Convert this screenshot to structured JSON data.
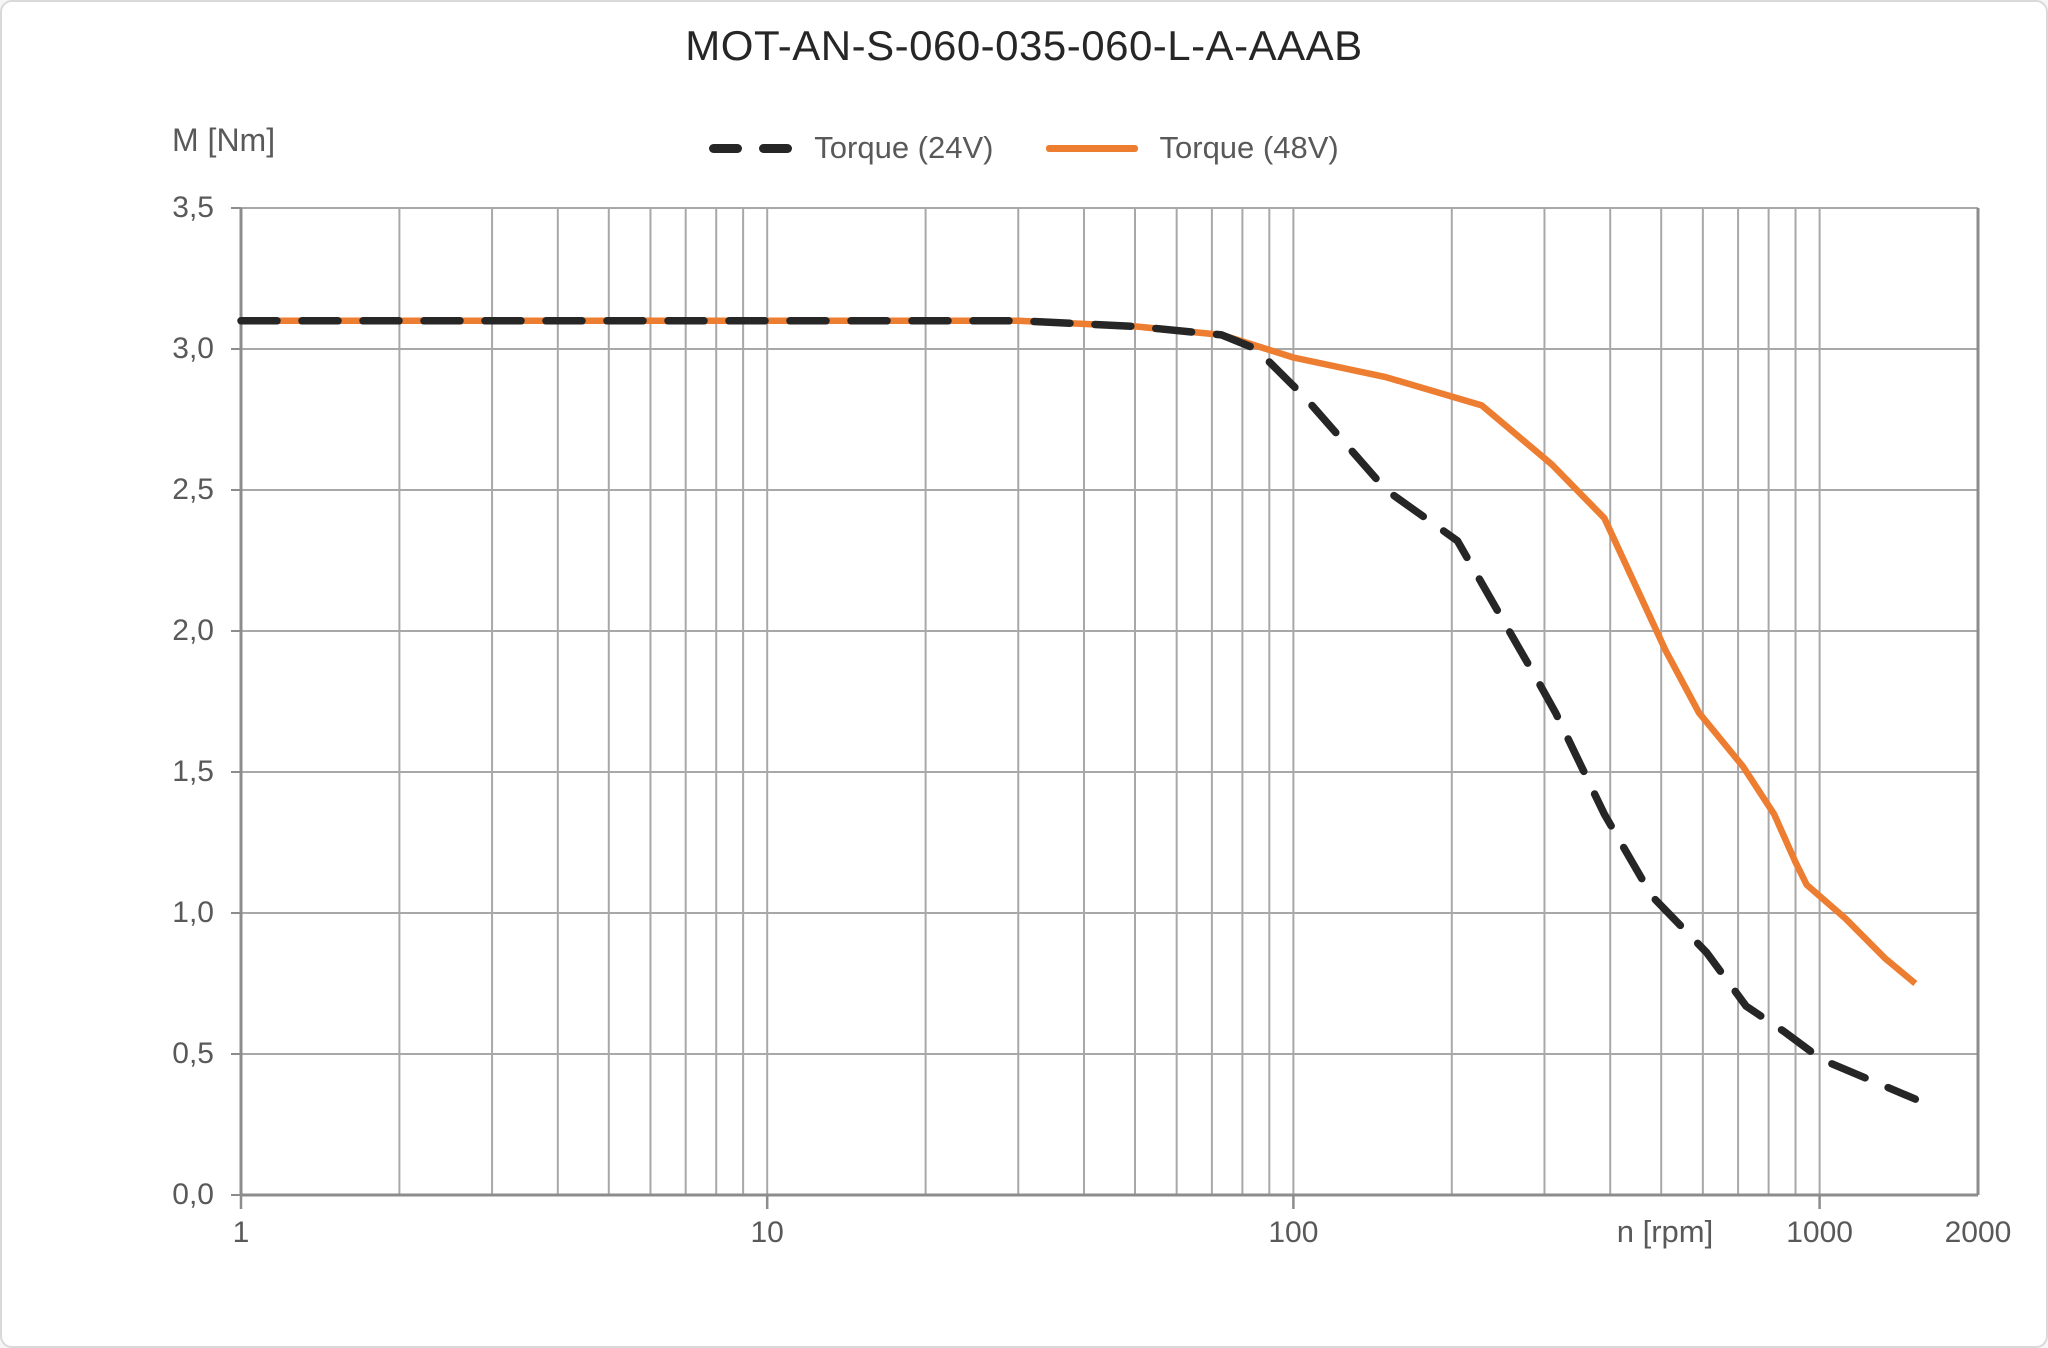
{
  "title": "MOT-AN-S-060-035-060-L-A-AAAB",
  "legend": {
    "items": [
      {
        "label": "Torque (24V)",
        "color": "#262626",
        "line_style": "dashed"
      },
      {
        "label": "Torque (48V)",
        "color": "#ED7D31",
        "line_style": "solid"
      }
    ]
  },
  "y_axis": {
    "title": "M [Nm]",
    "min": 0,
    "max": 3.5,
    "ticks": [
      {
        "value": 3.5,
        "label": "3,5"
      },
      {
        "value": 3.0,
        "label": "3,0"
      },
      {
        "value": 2.5,
        "label": "2,5"
      },
      {
        "value": 2.0,
        "label": "2,0"
      },
      {
        "value": 1.5,
        "label": "1,5"
      },
      {
        "value": 1.0,
        "label": "1,0"
      },
      {
        "value": 0.5,
        "label": "0,5"
      },
      {
        "value": 0.0,
        "label": "0,0"
      }
    ]
  },
  "x_axis": {
    "title": "n [rpm]",
    "scale": "log",
    "min": 1,
    "max": 2000,
    "ticks": [
      {
        "value": 1,
        "label": "1"
      },
      {
        "value": 10,
        "label": "10"
      },
      {
        "value": 100,
        "label": "100"
      },
      {
        "value": 1000,
        "label": "1000"
      },
      {
        "value": 2000,
        "label": "2000"
      }
    ]
  },
  "colors": {
    "background": "#FFFFFF",
    "grid": "#A8A8A8",
    "axis": "#8C8C8C",
    "labels": "#595959",
    "title": "#262626",
    "torque_24v": "#262626",
    "torque_48v": "#ED7D31"
  },
  "chart_data": {
    "type": "line",
    "title": "MOT-AN-S-060-035-060-L-A-AAAB",
    "xlabel": "n [rpm]",
    "ylabel": "M [Nm]",
    "x_scale": "log",
    "xlim": [
      1,
      2000
    ],
    "ylim": [
      0,
      3.5
    ],
    "grid": true,
    "legend_position": "top-center",
    "series": [
      {
        "name": "Torque (24V)",
        "style": "dashed",
        "color": "#262626",
        "points": [
          [
            1,
            3.1
          ],
          [
            10,
            3.1
          ],
          [
            30,
            3.1
          ],
          [
            50,
            3.08
          ],
          [
            73,
            3.05
          ],
          [
            85,
            3.0
          ],
          [
            105,
            2.83
          ],
          [
            150,
            2.5
          ],
          [
            205,
            2.32
          ],
          [
            290,
            1.83
          ],
          [
            315,
            1.71
          ],
          [
            390,
            1.35
          ],
          [
            480,
            1.06
          ],
          [
            610,
            0.86
          ],
          [
            725,
            0.67
          ],
          [
            855,
            0.58
          ],
          [
            1010,
            0.48
          ],
          [
            1240,
            0.41
          ],
          [
            1520,
            0.34
          ]
        ]
      },
      {
        "name": "Torque (48V)",
        "style": "solid",
        "color": "#ED7D31",
        "points": [
          [
            1,
            3.1
          ],
          [
            10,
            3.1
          ],
          [
            30,
            3.1
          ],
          [
            50,
            3.08
          ],
          [
            73,
            3.05
          ],
          [
            100,
            2.97
          ],
          [
            150,
            2.9
          ],
          [
            228,
            2.8
          ],
          [
            310,
            2.59
          ],
          [
            390,
            2.4
          ],
          [
            510,
            1.93
          ],
          [
            590,
            1.71
          ],
          [
            715,
            1.52
          ],
          [
            820,
            1.35
          ],
          [
            900,
            1.18
          ],
          [
            945,
            1.1
          ],
          [
            1120,
            0.98
          ],
          [
            1330,
            0.84
          ],
          [
            1520,
            0.75
          ]
        ]
      }
    ]
  }
}
